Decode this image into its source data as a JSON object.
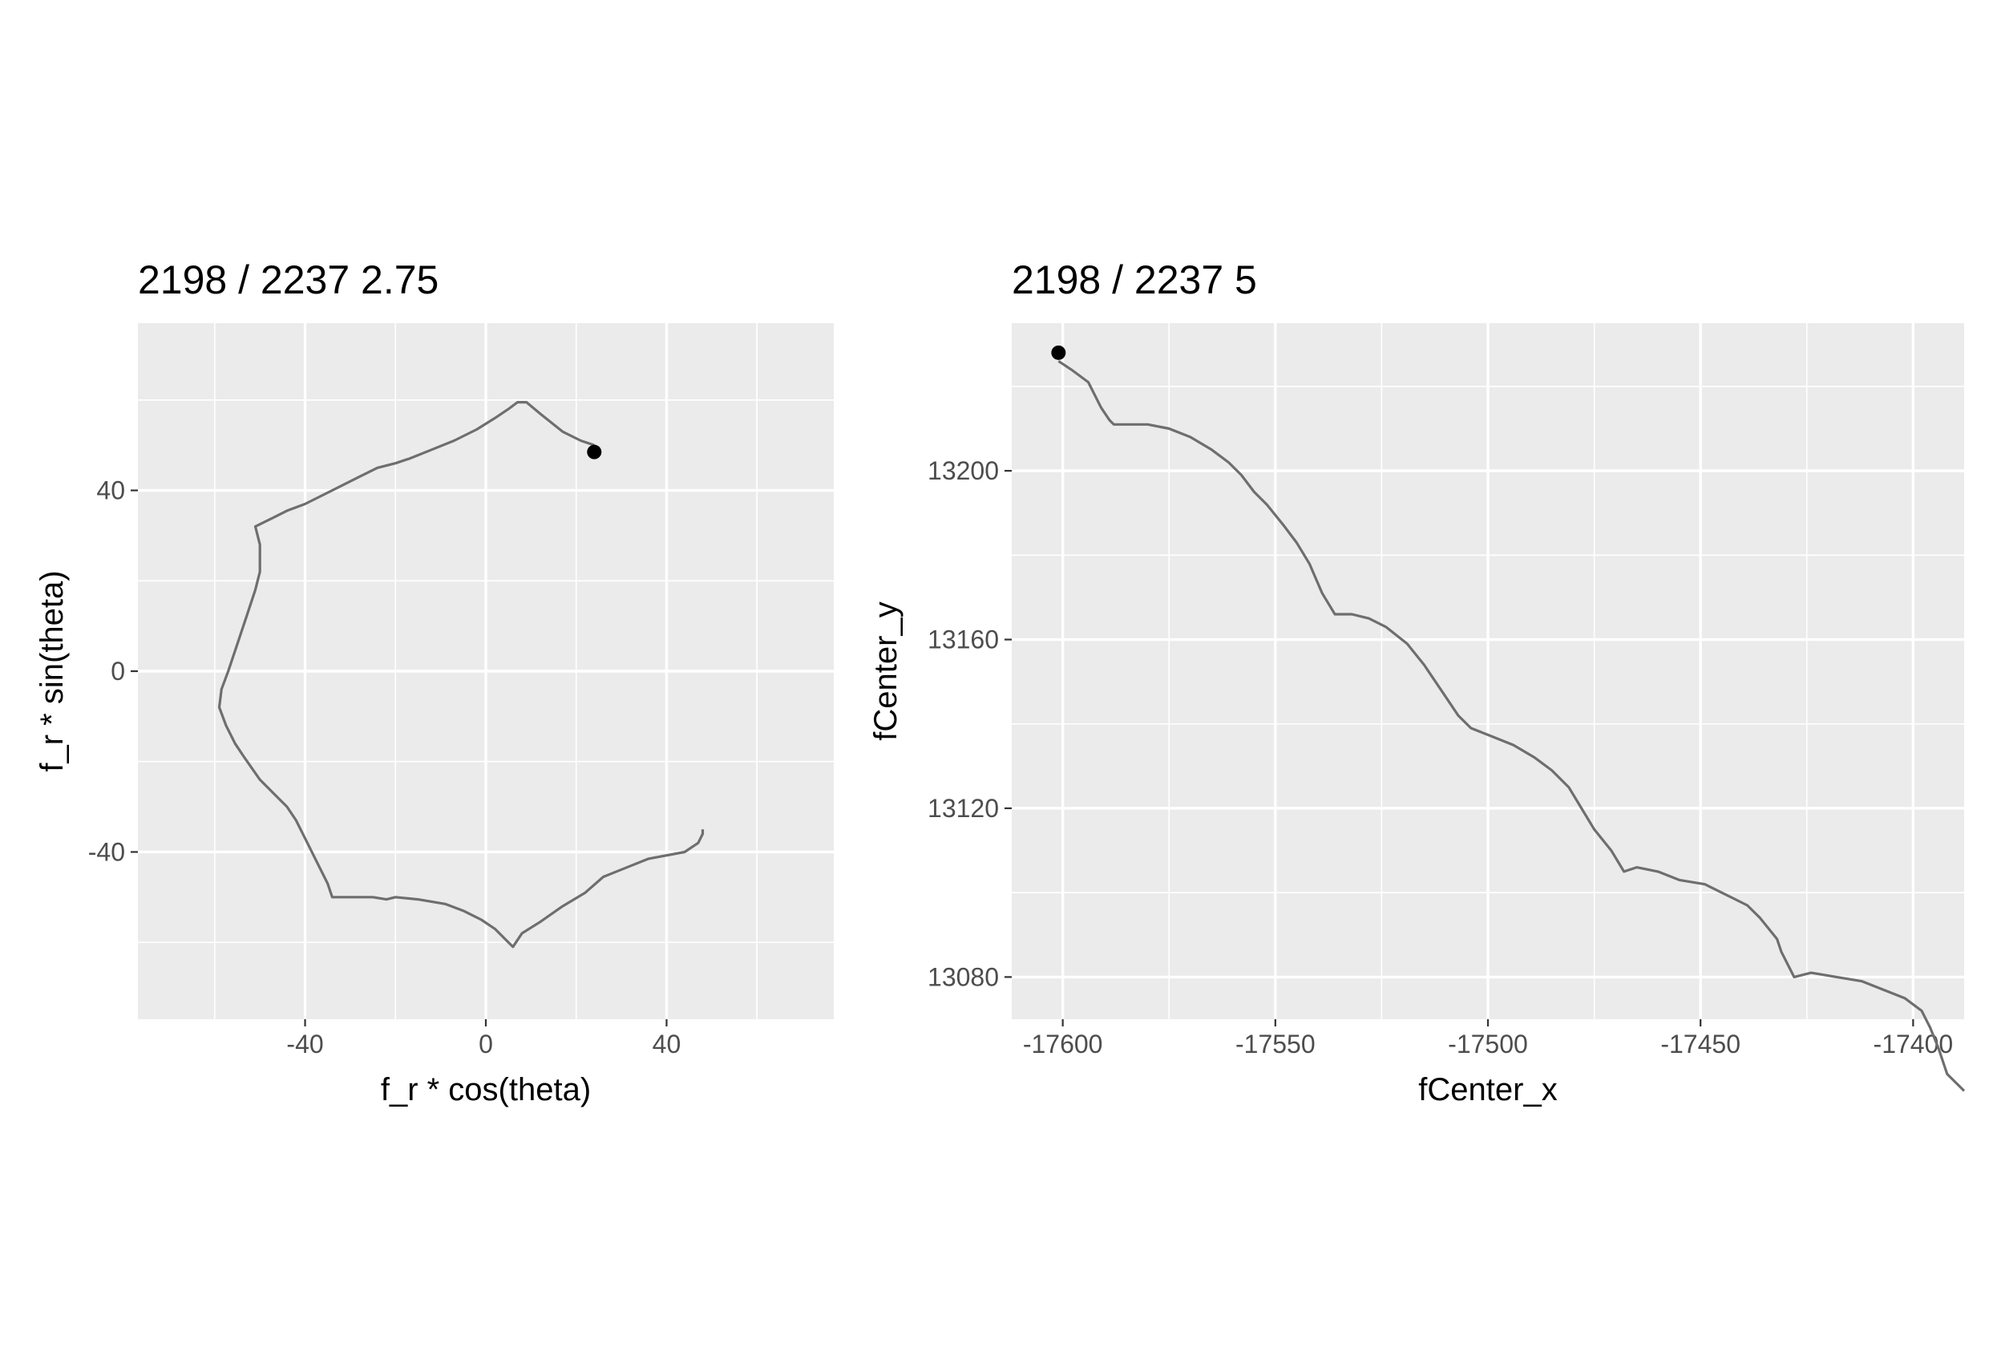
{
  "chart_data": [
    {
      "type": "line",
      "title": "2198 / 2237 2.75",
      "xlabel": "f_r * cos(theta)",
      "ylabel": "f_r * sin(theta)",
      "xlim": [
        -77,
        77
      ],
      "ylim": [
        -77,
        77
      ],
      "x_ticks": [
        -40,
        0,
        40
      ],
      "y_ticks": [
        -40,
        0,
        40
      ],
      "x_tick_labels": [
        "-40",
        "0",
        "40"
      ],
      "y_tick_labels": [
        "-40",
        "0",
        "40"
      ],
      "grid": true,
      "line_color": "#6e6e6e",
      "point_color": "#000000",
      "series": [
        {
          "points": [
            [
              24,
              50
            ],
            [
              21,
              51
            ],
            [
              17,
              53
            ],
            [
              12,
              57
            ],
            [
              9,
              59.5
            ],
            [
              7,
              59.5
            ],
            [
              5,
              58
            ],
            [
              2,
              56
            ],
            [
              -2,
              53.5
            ],
            [
              -7,
              51
            ],
            [
              -12,
              49
            ],
            [
              -17,
              47
            ],
            [
              -20,
              46
            ],
            [
              -24,
              45
            ],
            [
              -28,
              43
            ],
            [
              -32,
              41
            ],
            [
              -37,
              38.5
            ],
            [
              -40,
              37
            ],
            [
              -44,
              35.5
            ],
            [
              -47,
              34
            ],
            [
              -51,
              32
            ],
            [
              -50,
              28
            ],
            [
              -50,
              22
            ],
            [
              -51,
              18
            ],
            [
              -53,
              12
            ],
            [
              -55,
              6
            ],
            [
              -57,
              0
            ],
            [
              -58.5,
              -4
            ],
            [
              -59,
              -8
            ],
            [
              -57.5,
              -12
            ],
            [
              -55.5,
              -16
            ],
            [
              -53.5,
              -19
            ],
            [
              -50,
              -24
            ],
            [
              -47,
              -27
            ],
            [
              -44,
              -30
            ],
            [
              -42,
              -33
            ],
            [
              -39.5,
              -38
            ],
            [
              -38,
              -41
            ],
            [
              -35,
              -47
            ],
            [
              -34,
              -50
            ],
            [
              -30,
              -50
            ],
            [
              -25,
              -50
            ],
            [
              -22,
              -50.5
            ],
            [
              -20,
              -50
            ],
            [
              -15,
              -50.5
            ],
            [
              -9,
              -51.5
            ],
            [
              -5,
              -53
            ],
            [
              -1,
              -55
            ],
            [
              2,
              -57
            ],
            [
              4,
              -59
            ],
            [
              6,
              -61
            ],
            [
              8,
              -58
            ],
            [
              12,
              -55.5
            ],
            [
              17,
              -52
            ],
            [
              22,
              -49
            ],
            [
              26,
              -45.5
            ],
            [
              31,
              -43.5
            ],
            [
              36,
              -41.5
            ],
            [
              44,
              -40
            ],
            [
              47,
              -38
            ],
            [
              48,
              -36
            ],
            [
              48,
              -35
            ]
          ]
        }
      ],
      "marker": [
        24,
        48.5
      ]
    },
    {
      "type": "line",
      "title": "2198 / 2237 5",
      "xlabel": "fCenter_x",
      "ylabel": "fCenter_y",
      "xlim": [
        -17612,
        -17388
      ],
      "ylim": [
        13070,
        13235
      ],
      "x_ticks": [
        -17600,
        -17550,
        -17500,
        -17450,
        -17400
      ],
      "y_ticks": [
        13080,
        13120,
        13160,
        13200
      ],
      "x_tick_labels": [
        "-17600",
        "-17550",
        "-17500",
        "-17450",
        "-17400"
      ],
      "y_tick_labels": [
        "13080",
        "13120",
        "13160",
        "13200"
      ],
      "grid": true,
      "line_color": "#6e6e6e",
      "point_color": "#000000",
      "series": [
        {
          "points": [
            [
              -17601,
              13226
            ],
            [
              -17598,
              13224
            ],
            [
              -17594,
              13221
            ],
            [
              -17591,
              13215
            ],
            [
              -17589,
              13212
            ],
            [
              -17588,
              13211
            ],
            [
              -17584,
              13211
            ],
            [
              -17580,
              13211
            ],
            [
              -17575,
              13210
            ],
            [
              -17570,
              13208
            ],
            [
              -17565,
              13205
            ],
            [
              -17561,
              13202
            ],
            [
              -17558,
              13199
            ],
            [
              -17555,
              13195
            ],
            [
              -17552,
              13192
            ],
            [
              -17548,
              13187
            ],
            [
              -17545,
              13183
            ],
            [
              -17542,
              13178
            ],
            [
              -17539,
              13171
            ],
            [
              -17536,
              13166
            ],
            [
              -17532,
              13166
            ],
            [
              -17528,
              13165
            ],
            [
              -17524,
              13163
            ],
            [
              -17519,
              13159
            ],
            [
              -17515,
              13154
            ],
            [
              -17511,
              13148
            ],
            [
              -17507,
              13142
            ],
            [
              -17504,
              13139
            ],
            [
              -17499,
              13137
            ],
            [
              -17494,
              13135
            ],
            [
              -17489,
              13132
            ],
            [
              -17485,
              13129
            ],
            [
              -17481,
              13125
            ],
            [
              -17478,
              13120
            ],
            [
              -17475,
              13115
            ],
            [
              -17471,
              13110
            ],
            [
              -17468,
              13105
            ],
            [
              -17465,
              13106
            ],
            [
              -17460,
              13105
            ],
            [
              -17455,
              13103
            ],
            [
              -17449,
              13102
            ],
            [
              -17443,
              13099
            ],
            [
              -17439,
              13097
            ],
            [
              -17436,
              13094
            ],
            [
              -17432,
              13089
            ],
            [
              -17431,
              13086
            ],
            [
              -17428,
              13080
            ],
            [
              -17424,
              13081
            ],
            [
              -17418,
              13080
            ],
            [
              -17412,
              13079
            ],
            [
              -17407,
              13077
            ],
            [
              -17402,
              13075
            ],
            [
              -17398,
              13072
            ],
            [
              -17396,
              13068
            ],
            [
              -17394,
              13063
            ],
            [
              -17393,
              13060
            ],
            [
              -17392,
              13057
            ],
            [
              -17390,
              13055
            ],
            [
              -17388,
              13053
            ]
          ]
        }
      ],
      "marker": [
        -17601,
        13228
      ]
    }
  ]
}
